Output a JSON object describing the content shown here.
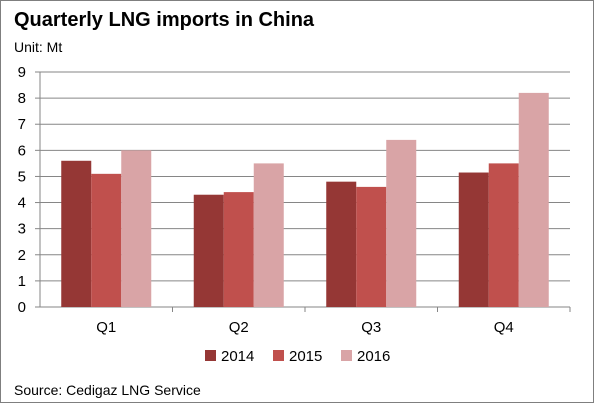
{
  "title": "Quarterly LNG imports in China",
  "subtitle": "Unit: Mt",
  "source": "Source: Cedigaz LNG Service",
  "colors": {
    "2014": "#953735",
    "2015": "#c0504d",
    "2016": "#d9a4a6",
    "grid": "#868686",
    "axis": "#868686"
  },
  "chart_data": {
    "type": "bar",
    "title": "Quarterly LNG imports in China",
    "subtitle": "Unit: Mt",
    "xlabel": "",
    "ylabel": "",
    "categories": [
      "Q1",
      "Q2",
      "Q3",
      "Q4"
    ],
    "series": [
      {
        "name": "2014",
        "color": "#953735",
        "values": [
          5.6,
          4.3,
          4.8,
          5.15
        ]
      },
      {
        "name": "2015",
        "color": "#c0504d",
        "values": [
          5.1,
          4.4,
          4.6,
          5.5
        ]
      },
      {
        "name": "2016",
        "color": "#d9a4a6",
        "values": [
          6.0,
          5.5,
          6.4,
          8.2
        ]
      }
    ],
    "ylim": [
      0,
      9
    ],
    "yticks": [
      "0",
      "1",
      "2",
      "3",
      "4",
      "5",
      "6",
      "7",
      "8",
      "9"
    ],
    "grid": true,
    "legend_position": "bottom"
  }
}
